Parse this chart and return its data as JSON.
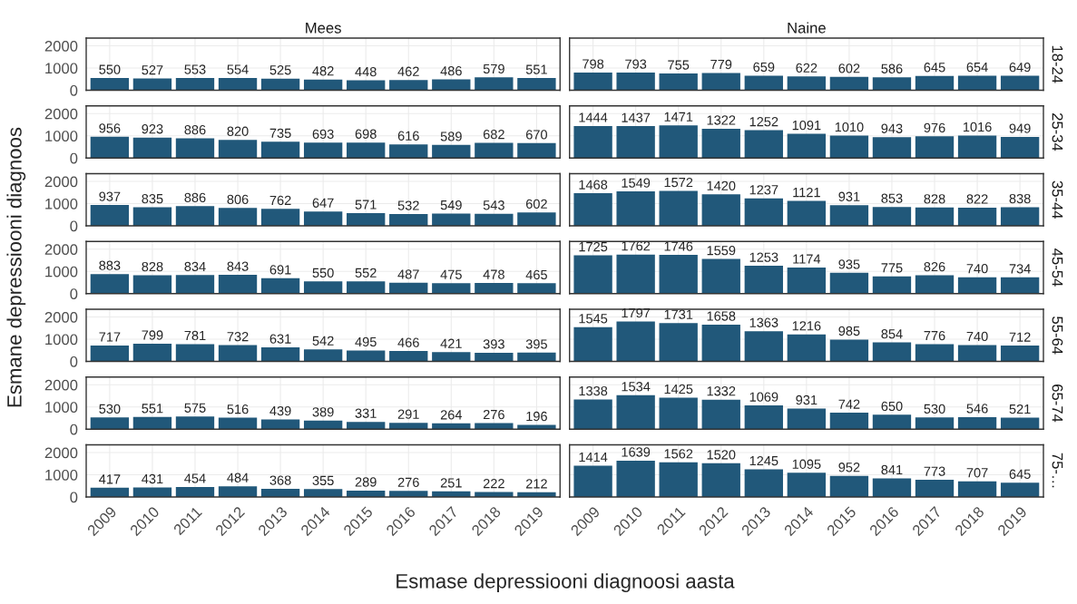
{
  "chart_data": [
    {
      "type": "bar",
      "title": "Mees",
      "categories": [
        "2009",
        "2010",
        "2011",
        "2012",
        "2013",
        "2014",
        "2015",
        "2016",
        "2017",
        "2018",
        "2019"
      ],
      "values": [
        550,
        527,
        553,
        554,
        525,
        482,
        448,
        462,
        486,
        579,
        551
      ],
      "color": "#21587a",
      "ylim": [
        0,
        2350
      ],
      "yticks": [
        0,
        1000,
        2000
      ],
      "data_labels": true,
      "grid": true,
      "tick_labels": "y"
    },
    {
      "type": "bar",
      "title": "Naine",
      "annotations": [
        "18-24"
      ],
      "categories": [
        "2009",
        "2010",
        "2011",
        "2012",
        "2013",
        "2014",
        "2015",
        "2016",
        "2017",
        "2018",
        "2019"
      ],
      "values": [
        798,
        793,
        755,
        779,
        659,
        622,
        602,
        586,
        645,
        654,
        649
      ],
      "color": "#21587a",
      "ylim": [
        0,
        2350
      ],
      "yticks": [
        0,
        1000,
        2000
      ],
      "data_labels": true,
      "grid": true,
      "tick_labels": false
    },
    {
      "type": "bar",
      "categories": [
        "2009",
        "2010",
        "2011",
        "2012",
        "2013",
        "2014",
        "2015",
        "2016",
        "2017",
        "2018",
        "2019"
      ],
      "values": [
        956,
        923,
        886,
        820,
        735,
        693,
        698,
        616,
        589,
        682,
        670
      ],
      "color": "#21587a",
      "ylim": [
        0,
        2350
      ],
      "yticks": [
        0,
        1000,
        2000
      ],
      "data_labels": true,
      "grid": true,
      "tick_labels": "y"
    },
    {
      "type": "bar",
      "annotations": [
        "25-34"
      ],
      "categories": [
        "2009",
        "2010",
        "2011",
        "2012",
        "2013",
        "2014",
        "2015",
        "2016",
        "2017",
        "2018",
        "2019"
      ],
      "values": [
        1444,
        1437,
        1471,
        1322,
        1252,
        1091,
        1010,
        943,
        976,
        1016,
        949
      ],
      "color": "#21587a",
      "ylim": [
        0,
        2350
      ],
      "yticks": [
        0,
        1000,
        2000
      ],
      "data_labels": true,
      "grid": true,
      "tick_labels": false
    },
    {
      "type": "bar",
      "categories": [
        "2009",
        "2010",
        "2011",
        "2012",
        "2013",
        "2014",
        "2015",
        "2016",
        "2017",
        "2018",
        "2019"
      ],
      "values": [
        937,
        835,
        886,
        806,
        762,
        647,
        571,
        532,
        549,
        543,
        602
      ],
      "color": "#21587a",
      "ylim": [
        0,
        2350
      ],
      "yticks": [
        0,
        1000,
        2000
      ],
      "data_labels": true,
      "grid": true,
      "tick_labels": "y"
    },
    {
      "type": "bar",
      "annotations": [
        "35-44"
      ],
      "categories": [
        "2009",
        "2010",
        "2011",
        "2012",
        "2013",
        "2014",
        "2015",
        "2016",
        "2017",
        "2018",
        "2019"
      ],
      "values": [
        1468,
        1549,
        1572,
        1420,
        1237,
        1121,
        931,
        853,
        828,
        822,
        838
      ],
      "color": "#21587a",
      "ylim": [
        0,
        2350
      ],
      "yticks": [
        0,
        1000,
        2000
      ],
      "data_labels": true,
      "grid": true,
      "tick_labels": false
    },
    {
      "type": "bar",
      "categories": [
        "2009",
        "2010",
        "2011",
        "2012",
        "2013",
        "2014",
        "2015",
        "2016",
        "2017",
        "2018",
        "2019"
      ],
      "values": [
        883,
        828,
        834,
        843,
        691,
        550,
        552,
        487,
        475,
        478,
        465
      ],
      "color": "#21587a",
      "ylim": [
        0,
        2350
      ],
      "yticks": [
        0,
        1000,
        2000
      ],
      "data_labels": true,
      "grid": true,
      "tick_labels": "y",
      "ylabel": "Esmane depressiooni diagnoos"
    },
    {
      "type": "bar",
      "annotations": [
        "45-54"
      ],
      "categories": [
        "2009",
        "2010",
        "2011",
        "2012",
        "2013",
        "2014",
        "2015",
        "2016",
        "2017",
        "2018",
        "2019"
      ],
      "values": [
        1725,
        1762,
        1746,
        1559,
        1253,
        1174,
        935,
        775,
        826,
        740,
        734
      ],
      "color": "#21587a",
      "ylim": [
        0,
        2350
      ],
      "yticks": [
        0,
        1000,
        2000
      ],
      "data_labels": true,
      "grid": true,
      "tick_labels": false
    },
    {
      "type": "bar",
      "categories": [
        "2009",
        "2010",
        "2011",
        "2012",
        "2013",
        "2014",
        "2015",
        "2016",
        "2017",
        "2018",
        "2019"
      ],
      "values": [
        717,
        799,
        781,
        732,
        631,
        542,
        495,
        466,
        421,
        393,
        395
      ],
      "color": "#21587a",
      "ylim": [
        0,
        2350
      ],
      "yticks": [
        0,
        1000,
        2000
      ],
      "data_labels": true,
      "grid": true,
      "tick_labels": "y"
    },
    {
      "type": "bar",
      "annotations": [
        "55-64"
      ],
      "categories": [
        "2009",
        "2010",
        "2011",
        "2012",
        "2013",
        "2014",
        "2015",
        "2016",
        "2017",
        "2018",
        "2019"
      ],
      "values": [
        1545,
        1797,
        1731,
        1658,
        1363,
        1216,
        985,
        854,
        776,
        740,
        712
      ],
      "color": "#21587a",
      "ylim": [
        0,
        2350
      ],
      "yticks": [
        0,
        1000,
        2000
      ],
      "data_labels": true,
      "grid": true,
      "tick_labels": false
    },
    {
      "type": "bar",
      "categories": [
        "2009",
        "2010",
        "2011",
        "2012",
        "2013",
        "2014",
        "2015",
        "2016",
        "2017",
        "2018",
        "2019"
      ],
      "values": [
        530,
        551,
        575,
        516,
        439,
        389,
        331,
        291,
        264,
        276,
        196
      ],
      "color": "#21587a",
      "ylim": [
        0,
        2350
      ],
      "yticks": [
        0,
        1000,
        2000
      ],
      "data_labels": true,
      "grid": true,
      "tick_labels": "y"
    },
    {
      "type": "bar",
      "annotations": [
        "65-74"
      ],
      "categories": [
        "2009",
        "2010",
        "2011",
        "2012",
        "2013",
        "2014",
        "2015",
        "2016",
        "2017",
        "2018",
        "2019"
      ],
      "values": [
        1338,
        1534,
        1425,
        1332,
        1069,
        931,
        742,
        650,
        530,
        546,
        521
      ],
      "color": "#21587a",
      "ylim": [
        0,
        2350
      ],
      "yticks": [
        0,
        1000,
        2000
      ],
      "data_labels": true,
      "grid": true,
      "tick_labels": false
    },
    {
      "type": "bar",
      "categories": [
        "2009",
        "2010",
        "2011",
        "2012",
        "2013",
        "2014",
        "2015",
        "2016",
        "2017",
        "2018",
        "2019"
      ],
      "values": [
        417,
        431,
        454,
        484,
        368,
        355,
        289,
        276,
        251,
        222,
        212
      ],
      "color": "#21587a",
      "ylim": [
        0,
        2350
      ],
      "yticks": [
        0,
        1000,
        2000
      ],
      "data_labels": true,
      "grid": true,
      "xlabel": "Esmase depressiooni diagnoosi aasta"
    },
    {
      "type": "bar",
      "annotations": [
        "75-…"
      ],
      "categories": [
        "2009",
        "2010",
        "2011",
        "2012",
        "2013",
        "2014",
        "2015",
        "2016",
        "2017",
        "2018",
        "2019"
      ],
      "values": [
        1414,
        1639,
        1562,
        1520,
        1245,
        1095,
        952,
        841,
        773,
        707,
        645
      ],
      "color": "#21587a",
      "ylim": [
        0,
        2350
      ],
      "yticks": [
        0,
        1000,
        2000
      ],
      "data_labels": true,
      "grid": true,
      "tick_labels": "x"
    }
  ]
}
